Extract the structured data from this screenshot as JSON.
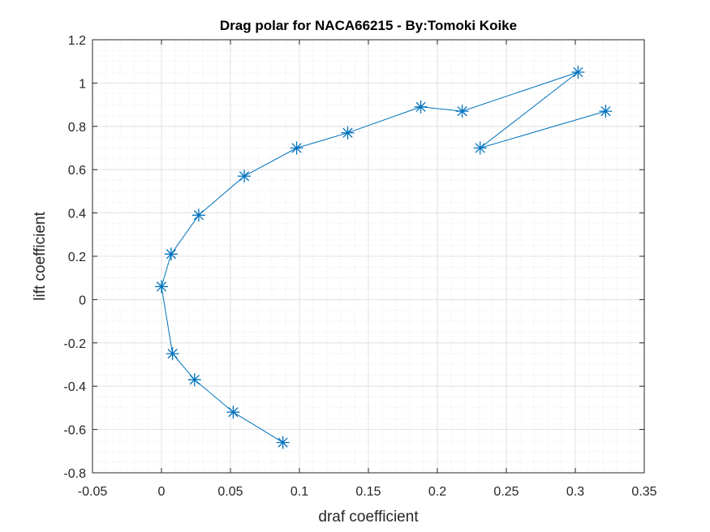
{
  "chart_data": {
    "type": "line",
    "title": "Drag polar for NACA66215 - By:Tomoki Koike",
    "xlabel": "draf coefficient",
    "ylabel": "lift coefficient",
    "xlim": [
      -0.05,
      0.35
    ],
    "ylim": [
      -0.8,
      1.2
    ],
    "xticks": [
      -0.05,
      0,
      0.05,
      0.1,
      0.15,
      0.2,
      0.25,
      0.3,
      0.35
    ],
    "yticks": [
      -0.8,
      -0.6,
      -0.4,
      -0.2,
      0,
      0.2,
      0.4,
      0.6,
      0.8,
      1,
      1.2
    ],
    "xtick_labels": [
      "-0.05",
      "0",
      "0.05",
      "0.1",
      "0.15",
      "0.2",
      "0.25",
      "0.3",
      "0.35"
    ],
    "ytick_labels": [
      "-0.8",
      "-0.6",
      "-0.4",
      "-0.2",
      "0",
      "0.2",
      "0.4",
      "0.6",
      "0.8",
      "1",
      "1.2"
    ],
    "grid": true,
    "minor_grid": true,
    "marker": "asterisk",
    "series": [
      {
        "color": "#0072BD",
        "x": [
          0.088,
          0.052,
          0.024,
          0.008,
          0.0,
          0.007,
          0.027,
          0.06,
          0.098,
          0.135,
          0.188,
          0.218,
          0.302,
          0.231,
          0.322
        ],
        "y": [
          -0.66,
          -0.52,
          -0.37,
          -0.25,
          0.06,
          0.21,
          0.39,
          0.57,
          0.7,
          0.77,
          0.89,
          0.87,
          1.05,
          0.7,
          0.87
        ]
      }
    ]
  }
}
